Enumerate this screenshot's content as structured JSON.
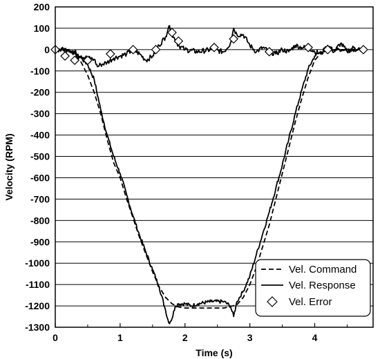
{
  "chart_data": {
    "type": "line",
    "title": "",
    "xlabel": "Time (s)",
    "ylabel": "Velocity (RPM)",
    "xlim": [
      0,
      4.9
    ],
    "ylim": [
      -1300,
      200
    ],
    "xticks": [
      0,
      1,
      2,
      3,
      4
    ],
    "yticks": [
      200,
      100,
      0,
      -100,
      -200,
      -300,
      -400,
      -500,
      -600,
      -700,
      -800,
      -900,
      -1000,
      -1100,
      -1200,
      -1300
    ],
    "grid": "horizontal",
    "legend_position": "bottom-right",
    "colors": {
      "line": "#000000",
      "grid": "#000000",
      "background": "#ffffff"
    },
    "series": [
      {
        "name": "Vel. Command",
        "style": "dashed",
        "x": [
          0,
          0.2,
          0.3,
          0.4,
          0.5,
          0.6,
          0.7,
          0.8,
          0.9,
          1.0,
          1.1,
          1.2,
          1.3,
          1.4,
          1.5,
          1.6,
          1.7,
          1.8,
          1.9,
          2.0,
          2.2,
          2.4,
          2.6,
          2.8,
          2.9,
          3.0,
          3.1,
          3.2,
          3.3,
          3.4,
          3.5,
          3.6,
          3.7,
          3.8,
          3.9,
          4.0,
          4.1,
          4.2,
          4.3,
          4.5,
          4.8
        ],
        "y": [
          0,
          0,
          -20,
          -60,
          -120,
          -200,
          -300,
          -420,
          -530,
          -600,
          -700,
          -790,
          -880,
          -960,
          -1040,
          -1110,
          -1160,
          -1190,
          -1205,
          -1210,
          -1210,
          -1210,
          -1210,
          -1195,
          -1160,
          -1100,
          -1020,
          -920,
          -820,
          -700,
          -580,
          -460,
          -340,
          -230,
          -130,
          -50,
          -15,
          0,
          0,
          0,
          0
        ]
      },
      {
        "name": "Vel. Response",
        "style": "solid",
        "x": [
          0,
          0.2,
          0.3,
          0.4,
          0.5,
          0.6,
          0.7,
          0.8,
          0.9,
          1.0,
          1.1,
          1.2,
          1.3,
          1.4,
          1.5,
          1.6,
          1.7,
          1.75,
          1.8,
          1.85,
          1.9,
          2.0,
          2.1,
          2.2,
          2.4,
          2.6,
          2.7,
          2.75,
          2.8,
          2.9,
          3.0,
          3.1,
          3.2,
          3.3,
          3.4,
          3.5,
          3.6,
          3.7,
          3.8,
          3.9,
          4.0,
          4.1,
          4.2,
          4.3,
          4.5,
          4.8
        ],
        "y": [
          0,
          0,
          -20,
          -40,
          -70,
          -140,
          -280,
          -400,
          -500,
          -580,
          -680,
          -780,
          -870,
          -950,
          -1030,
          -1110,
          -1220,
          -1280,
          -1260,
          -1200,
          -1190,
          -1190,
          -1200,
          -1190,
          -1180,
          -1180,
          -1200,
          -1250,
          -1180,
          -1130,
          -1060,
          -960,
          -860,
          -760,
          -650,
          -540,
          -420,
          -300,
          -190,
          -90,
          -30,
          -10,
          10,
          0,
          0,
          0
        ]
      },
      {
        "name": "Vel. Error",
        "style": "solid-markers",
        "x": [
          0,
          0.1,
          0.2,
          0.3,
          0.4,
          0.5,
          0.6,
          0.65,
          0.7,
          0.8,
          0.9,
          1.0,
          1.1,
          1.2,
          1.3,
          1.4,
          1.5,
          1.6,
          1.7,
          1.75,
          1.8,
          1.9,
          2.0,
          2.2,
          2.4,
          2.6,
          2.7,
          2.75,
          2.8,
          2.9,
          3.0,
          3.1,
          3.2,
          3.3,
          3.4,
          3.5,
          3.6,
          3.7,
          3.8,
          3.9,
          4.0,
          4.1,
          4.2,
          4.3,
          4.4,
          4.5,
          4.6,
          4.7,
          4.8
        ],
        "y": [
          0,
          0,
          0,
          -10,
          -30,
          -40,
          -45,
          -80,
          -70,
          -60,
          -40,
          -30,
          -20,
          0,
          -20,
          -50,
          -30,
          20,
          60,
          110,
          70,
          20,
          0,
          -10,
          0,
          -10,
          30,
          100,
          70,
          70,
          20,
          -10,
          10,
          -10,
          -20,
          0,
          -10,
          20,
          10,
          10,
          -10,
          -20,
          20,
          -10,
          30,
          -10,
          10,
          0,
          0
        ],
        "markers_x": [
          0,
          0.15,
          0.3,
          0.5,
          0.85,
          1.2,
          1.55,
          1.8,
          1.9,
          2.45,
          2.75,
          3.3,
          3.9,
          4.2,
          4.75
        ],
        "markers_y": [
          0,
          -30,
          -50,
          -50,
          -20,
          0,
          0,
          80,
          40,
          10,
          50,
          -10,
          10,
          0,
          0
        ]
      }
    ]
  }
}
